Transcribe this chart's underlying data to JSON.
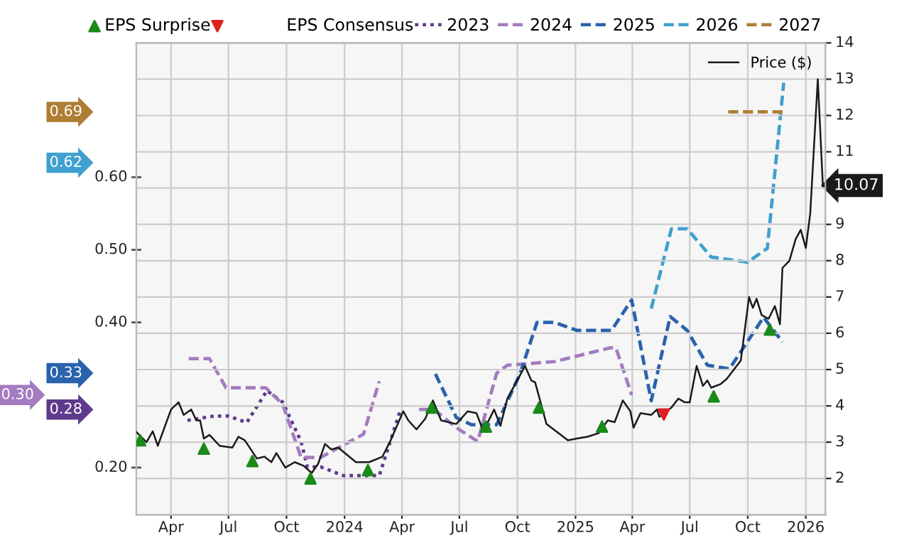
{
  "chart_data": {
    "type": "line",
    "xlim": [
      "2023-02-05",
      "2026-02-01"
    ],
    "xticks": [
      {
        "value": "2023-04-01",
        "label": "Apr"
      },
      {
        "value": "2023-07-01",
        "label": "Jul"
      },
      {
        "value": "2023-10-01",
        "label": "Oct"
      },
      {
        "value": "2024-01-01",
        "label": "2024"
      },
      {
        "value": "2024-04-01",
        "label": "Apr"
      },
      {
        "value": "2024-07-01",
        "label": "Jul"
      },
      {
        "value": "2024-10-01",
        "label": "Oct"
      },
      {
        "value": "2025-01-01",
        "label": "2025"
      },
      {
        "value": "2025-04-01",
        "label": "Apr"
      },
      {
        "value": "2025-07-01",
        "label": "Jul"
      },
      {
        "value": "2025-10-01",
        "label": "Oct"
      },
      {
        "value": "2026-01-01",
        "label": "2026"
      }
    ],
    "ylim": [
      0.135,
      0.785
    ],
    "yticks": [
      {
        "value": 0.2,
        "label": "0.20"
      },
      {
        "value": 0.4,
        "label": "0.40"
      },
      {
        "value": 0.5,
        "label": "0.50"
      },
      {
        "value": 0.6,
        "label": "0.60"
      }
    ],
    "y2lim": [
      1,
      14
    ],
    "y2ticks": [
      2,
      3,
      4,
      5,
      6,
      7,
      8,
      9,
      {
        "value": 10,
        "label": null
      },
      11,
      12,
      13,
      14
    ],
    "grid": true,
    "legend": "top",
    "legend_title": "EPS Consensus",
    "series": [
      {
        "name": "2023",
        "color": "#5e3a8c",
        "line_style": "dotted",
        "x": [
          "2023-04-27",
          "2023-06-08",
          "2023-07-01",
          "2023-07-30",
          "2023-08-31",
          "2023-09-25",
          "2023-10-24",
          "2023-11-03",
          "2023-11-24",
          "2023-12-30",
          "2024-02-25",
          "2024-03-29"
        ],
        "values": [
          0.265,
          0.271,
          0.271,
          0.262,
          0.306,
          0.29,
          0.236,
          0.201,
          0.201,
          0.189,
          0.189,
          0.278
        ]
      },
      {
        "name": "2024",
        "color": "#a47cc0",
        "line_style": "dashed",
        "x": [
          "2023-04-29",
          "2023-06-01",
          "2023-06-27",
          "2023-08-29",
          "2023-09-25",
          "2023-10-24",
          "2023-11-24",
          "2024-01-31",
          "2024-02-25",
          "2024-03-28",
          "2024-04-28",
          "2024-05-22",
          "2024-06-26",
          "2024-07-30",
          "2024-08-29",
          "2024-09-15",
          "2024-11-29",
          "2025-02-25",
          "2025-03-06",
          "2025-03-31"
        ],
        "values": [
          0.35,
          0.35,
          0.31,
          0.31,
          0.287,
          0.214,
          0.214,
          0.246,
          0.319,
          null,
          0.28,
          0.28,
          0.255,
          0.236,
          0.33,
          0.341,
          0.346,
          0.365,
          0.365,
          0.3
        ]
      },
      {
        "name": "2025",
        "color": "#2a62ad",
        "line_style": "dashed",
        "x": [
          "2024-05-24",
          "2024-06-26",
          "2024-07-20",
          "2024-08-29",
          "2024-10-05",
          "2024-11-01",
          "2024-11-29",
          "2025-01-03",
          "2025-02-27",
          "2025-03-31",
          "2025-05-01",
          "2025-05-31",
          "2025-06-27",
          "2025-07-29",
          "2025-09-02",
          "2025-10-26",
          "2025-11-25"
        ],
        "values": [
          0.329,
          0.269,
          0.259,
          0.259,
          0.329,
          0.4,
          0.4,
          0.389,
          0.389,
          0.431,
          0.292,
          0.408,
          0.389,
          0.341,
          0.336,
          0.407,
          0.373
        ]
      },
      {
        "name": "2026",
        "color": "#40a0cf",
        "line_style": "dashed",
        "x": [
          "2025-05-01",
          "2025-06-02",
          "2025-06-27",
          "2025-08-04",
          "2025-10-01",
          "2025-11-01",
          "2025-11-27"
        ],
        "values": [
          0.419,
          0.529,
          0.529,
          0.49,
          0.483,
          0.502,
          0.73
        ]
      },
      {
        "name": "2027",
        "color": "#b07d35",
        "line_style": "dashed",
        "x": [
          "2025-08-31",
          "2025-11-27"
        ],
        "values": [
          0.69,
          0.69
        ]
      },
      {
        "name": "Price ($)",
        "color": "#1a1a1a",
        "axis": "y2",
        "line_style": "solid",
        "x": [
          "2023-02-05",
          "2023-02-21",
          "2023-03-03",
          "2023-03-11",
          "2023-04-01",
          "2023-04-13",
          "2023-04-21",
          "2023-05-03",
          "2023-05-11",
          "2023-05-17",
          "2023-05-23",
          "2023-06-01",
          "2023-06-17",
          "2023-07-07",
          "2023-07-17",
          "2023-07-27",
          "2023-08-15",
          "2023-08-27",
          "2023-09-07",
          "2023-09-15",
          "2023-09-29",
          "2023-10-14",
          "2023-10-28",
          "2023-11-10",
          "2023-11-20",
          "2023-12-01",
          "2023-12-11",
          "2023-12-22",
          "2024-01-19",
          "2024-02-09",
          "2024-03-01",
          "2024-03-14",
          "2024-04-03",
          "2024-04-11",
          "2024-04-24",
          "2024-05-08",
          "2024-05-20",
          "2024-06-02",
          "2024-06-26",
          "2024-07-14",
          "2024-07-28",
          "2024-08-08",
          "2024-08-25",
          "2024-09-04",
          "2024-09-15",
          "2024-10-13",
          "2024-10-23",
          "2024-10-29",
          "2024-11-16",
          "2024-12-20",
          "2025-01-03",
          "2025-01-20",
          "2025-02-07",
          "2025-02-21",
          "2025-03-04",
          "2025-03-17",
          "2025-03-29",
          "2025-04-03",
          "2025-04-14",
          "2025-05-01",
          "2025-05-10",
          "2025-05-14",
          "2025-06-02",
          "2025-06-13",
          "2025-06-23",
          "2025-07-01",
          "2025-07-12",
          "2025-07-22",
          "2025-07-29",
          "2025-08-04",
          "2025-08-19",
          "2025-08-29",
          "2025-09-09",
          "2025-09-20",
          "2025-10-03",
          "2025-10-09",
          "2025-10-15",
          "2025-10-23",
          "2025-11-03",
          "2025-11-13",
          "2025-11-21",
          "2025-11-25",
          "2025-12-06",
          "2025-12-16",
          "2025-12-24",
          "2026-01-01",
          "2026-01-08",
          "2026-01-20",
          "2026-01-28"
        ],
        "values": [
          3.28,
          3.0,
          3.3,
          2.9,
          3.9,
          4.1,
          3.75,
          3.9,
          3.6,
          3.6,
          3.1,
          3.2,
          2.9,
          2.85,
          3.15,
          3.05,
          2.55,
          2.6,
          2.45,
          2.7,
          2.3,
          2.45,
          2.35,
          2.15,
          2.4,
          2.95,
          2.8,
          2.85,
          2.45,
          2.45,
          2.6,
          3.05,
          3.85,
          3.6,
          3.35,
          3.65,
          4.15,
          3.6,
          3.5,
          3.85,
          3.8,
          3.3,
          3.9,
          3.45,
          4.2,
          5.1,
          4.7,
          4.65,
          3.5,
          3.05,
          3.1,
          3.15,
          3.25,
          3.6,
          3.55,
          4.15,
          3.85,
          3.4,
          3.8,
          3.75,
          3.9,
          3.7,
          3.95,
          4.2,
          4.1,
          4.1,
          5.1,
          4.55,
          4.7,
          4.5,
          4.6,
          4.75,
          5.0,
          5.25,
          7.0,
          6.7,
          6.95,
          6.5,
          6.4,
          6.75,
          6.25,
          7.8,
          8.0,
          8.6,
          8.85,
          8.35,
          9.3,
          13.0,
          10.07
        ]
      },
      {
        "name": "EPS Surprise",
        "type": "scatter",
        "marker": "triangle",
        "color": "#1a8a1a",
        "axis": "y2",
        "x": [
          "2023-02-11",
          "2023-05-23",
          "2023-08-08",
          "2023-11-08",
          "2024-02-07",
          "2024-05-18",
          "2024-08-12",
          "2024-11-04",
          "2025-02-12",
          "2025-08-08",
          "2025-11-05"
        ],
        "values": [
          3.05,
          2.82,
          2.48,
          2.0,
          2.23,
          3.95,
          3.43,
          3.95,
          3.43,
          4.26,
          6.1
        ]
      },
      {
        "type": "scatter",
        "marker": "triangle_down",
        "color": "#e02020",
        "axis": "y2",
        "x": [
          "2025-05-21"
        ],
        "values": [
          3.76
        ]
      }
    ],
    "annotations": [
      "0.28",
      "0.30",
      "0.33",
      "0.62",
      "0.69",
      "10.07"
    ]
  }
}
